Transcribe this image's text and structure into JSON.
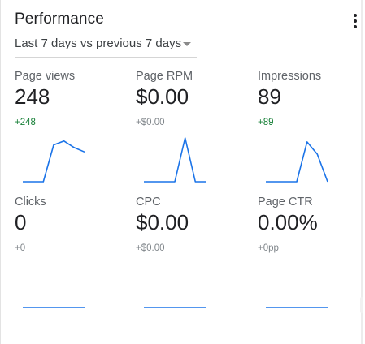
{
  "card": {
    "title": "Performance",
    "more_icon": "more-vert-icon",
    "date_range": {
      "selected": "Last 7 days vs previous 7 days",
      "dropdown_icon": "caret-down-icon"
    }
  },
  "colors": {
    "sparkline": "#1a73e8",
    "delta_positive": "#188038",
    "delta_neutral": "#80868b"
  },
  "metrics": [
    {
      "id": "page-views",
      "label": "Page views",
      "value": "248",
      "delta": "+248",
      "delta_tone": "pos",
      "trend": [
        0,
        0,
        0,
        0.84,
        0.93,
        0.78,
        0.68
      ]
    },
    {
      "id": "page-rpm",
      "label": "Page RPM",
      "value": "$0.00",
      "delta": "+$0.00",
      "delta_tone": "neu",
      "trend": [
        0,
        0,
        0,
        0,
        1,
        0,
        0
      ]
    },
    {
      "id": "impressions",
      "label": "Impressions",
      "value": "89",
      "delta": "+89",
      "delta_tone": "pos",
      "trend": [
        0,
        0,
        0,
        0,
        0.91,
        0.63,
        0
      ]
    },
    {
      "id": "clicks",
      "label": "Clicks",
      "value": "0",
      "delta": "+0",
      "delta_tone": "neu",
      "trend": [
        0,
        0,
        0,
        0,
        0,
        0,
        0
      ]
    },
    {
      "id": "cpc",
      "label": "CPC",
      "value": "$0.00",
      "delta": "+$0.00",
      "delta_tone": "neu",
      "trend": [
        0,
        0,
        0,
        0,
        0,
        0,
        0
      ]
    },
    {
      "id": "page-ctr",
      "label": "Page CTR",
      "value": "0.00%",
      "delta": "+0pp",
      "delta_tone": "neu",
      "trend": [
        0,
        0,
        0,
        0,
        0,
        0,
        0
      ]
    }
  ]
}
